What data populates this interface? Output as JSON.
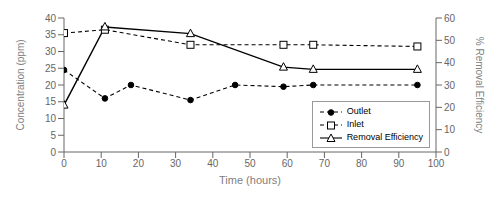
{
  "chart_data": {
    "type": "line",
    "xlabel": "Time (hours)",
    "ylabel": "Concentration (ppm)",
    "y2label": "% Removal Efficiency",
    "xlim": [
      0,
      100
    ],
    "xticks": [
      0,
      10,
      20,
      30,
      40,
      50,
      60,
      70,
      80,
      90,
      100
    ],
    "ylim": [
      0,
      40
    ],
    "yticks": [
      0,
      5,
      10,
      15,
      20,
      25,
      30,
      35,
      40
    ],
    "y2lim": [
      0,
      60
    ],
    "y2ticks": [
      0,
      10,
      20,
      30,
      40,
      50,
      60
    ],
    "legend": "lower right",
    "series": [
      {
        "name": "Outlet",
        "x": [
          0,
          11,
          18,
          34,
          46,
          59,
          67,
          95
        ],
        "values": [
          24.5,
          16.0,
          20.0,
          15.5,
          20.0,
          19.5,
          20.0,
          20.0
        ],
        "color": "#000000",
        "marker": "circle",
        "line_style": "dashed"
      },
      {
        "name": "Inlet",
        "x": [
          0,
          11,
          34,
          59,
          67,
          95
        ],
        "values": [
          35.5,
          36.5,
          32.0,
          32.0,
          32.0,
          31.5
        ],
        "color": "#000000",
        "marker": "square",
        "line_style": "dashed"
      },
      {
        "name": "Removal Efficiency",
        "x": [
          0,
          11,
          34,
          59,
          67,
          95
        ],
        "values": [
          21,
          56,
          53,
          38,
          37,
          37
        ],
        "color": "#000000",
        "marker": "triangle",
        "line_style": "solid",
        "axis": "y2"
      }
    ]
  }
}
